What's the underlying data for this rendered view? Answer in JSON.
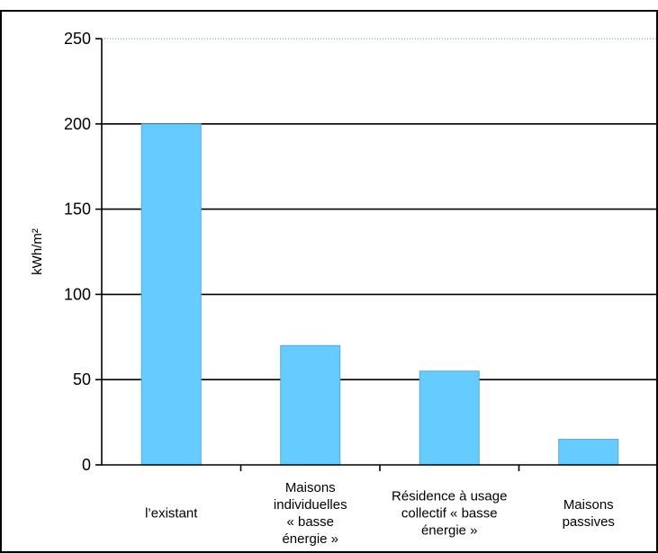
{
  "chart_data": {
    "type": "bar",
    "categories": [
      [
        "l’existant"
      ],
      [
        "Maisons",
        "individuelles",
        "« basse",
        "énergie »"
      ],
      [
        "Résidence à usage",
        "collectif « basse",
        "énergie »"
      ],
      [
        "Maisons",
        "passives"
      ]
    ],
    "values": [
      200,
      70,
      55,
      15
    ],
    "ylabel": "kWh/m²",
    "ylim": [
      0,
      250
    ],
    "yticks": [
      0,
      50,
      100,
      150,
      200,
      250
    ],
    "grid": true,
    "bar_color": "#66ccff"
  }
}
